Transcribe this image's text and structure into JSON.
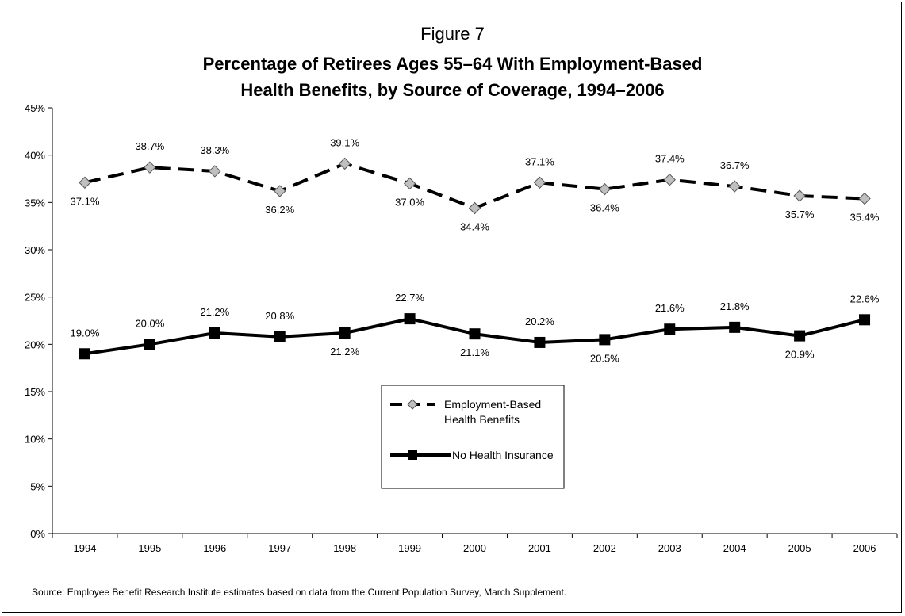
{
  "figure_label": "Figure 7",
  "source": "Source: Employee Benefit Research Institute estimates based on data from the Current Population Survey, March Supplement.",
  "chart_data": {
    "type": "line",
    "title": [
      "Percentage of Retirees Ages 55–64 With Employment-Based",
      "Health Benefits, by Source of Coverage, 1994–2006"
    ],
    "categories": [
      "1994",
      "1995",
      "1996",
      "1997",
      "1998",
      "1999",
      "2000",
      "2001",
      "2002",
      "2003",
      "2004",
      "2005",
      "2006"
    ],
    "y_ticks": [
      "0%",
      "5%",
      "10%",
      "15%",
      "20%",
      "25%",
      "30%",
      "35%",
      "40%",
      "45%"
    ],
    "ylim": [
      0,
      45
    ],
    "grid": false,
    "legend_position": "center",
    "series": [
      {
        "name": "Employment-Based Health Benefits",
        "style": "dashed",
        "marker": "diamond",
        "color": "#000000",
        "marker_fill": "#bfbfbf",
        "values": [
          37.1,
          38.7,
          38.3,
          36.2,
          39.1,
          37.0,
          34.4,
          37.1,
          36.4,
          37.4,
          36.7,
          35.7,
          35.4
        ],
        "labels": [
          "37.1%",
          "38.7%",
          "38.3%",
          "36.2%",
          "39.1%",
          "37.0%",
          "34.4%",
          "37.1%",
          "36.4%",
          "37.4%",
          "36.7%",
          "35.7%",
          "35.4%"
        ],
        "label_pos": [
          "below",
          "above",
          "above",
          "below",
          "above",
          "below",
          "below",
          "above",
          "below",
          "above",
          "above",
          "below",
          "below"
        ]
      },
      {
        "name": "No Health Insurance",
        "style": "solid",
        "marker": "square",
        "color": "#000000",
        "marker_fill": "#000000",
        "values": [
          19.0,
          20.0,
          21.2,
          20.8,
          21.2,
          22.7,
          21.1,
          20.2,
          20.5,
          21.6,
          21.8,
          20.9,
          22.6
        ],
        "labels": [
          "19.0%",
          "20.0%",
          "21.2%",
          "20.8%",
          "21.2%",
          "22.7%",
          "21.1%",
          "20.2%",
          "20.5%",
          "21.6%",
          "21.8%",
          "20.9%",
          "22.6%"
        ],
        "label_pos": [
          "above",
          "above",
          "above",
          "above",
          "below",
          "above",
          "below",
          "above",
          "below",
          "above",
          "above",
          "below",
          "above"
        ]
      }
    ]
  }
}
